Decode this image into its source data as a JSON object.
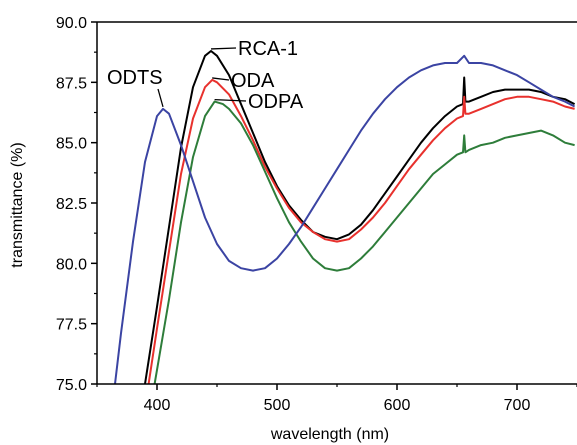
{
  "chart_data": {
    "type": "line",
    "title": "",
    "xlabel": "wavelength (nm)",
    "ylabel": "transmittance (%)",
    "xlim": [
      350,
      750
    ],
    "ylim": [
      75.0,
      90.0
    ],
    "xticks": [
      400,
      500,
      600,
      700
    ],
    "xtick_labels": [
      "400",
      "500",
      "600",
      "700"
    ],
    "yticks": [
      75.0,
      77.5,
      80.0,
      82.5,
      85.0,
      87.5,
      90.0
    ],
    "ytick_labels": [
      "75.0",
      "77.5",
      "80.0",
      "82.5",
      "85.0",
      "87.5",
      "90.0"
    ],
    "grid": false,
    "series": [
      {
        "name": "RCA-1",
        "color": "#000000",
        "points": [
          [
            390,
            75.0
          ],
          [
            400,
            78.2
          ],
          [
            410,
            81.5
          ],
          [
            420,
            84.8
          ],
          [
            430,
            87.3
          ],
          [
            440,
            88.6
          ],
          [
            445,
            88.8
          ],
          [
            450,
            88.6
          ],
          [
            460,
            87.8
          ],
          [
            470,
            86.6
          ],
          [
            480,
            85.4
          ],
          [
            490,
            84.2
          ],
          [
            500,
            83.2
          ],
          [
            510,
            82.4
          ],
          [
            520,
            81.8
          ],
          [
            530,
            81.3
          ],
          [
            540,
            81.1
          ],
          [
            550,
            81.0
          ],
          [
            560,
            81.2
          ],
          [
            570,
            81.6
          ],
          [
            580,
            82.2
          ],
          [
            590,
            82.9
          ],
          [
            600,
            83.6
          ],
          [
            610,
            84.3
          ],
          [
            620,
            85.0
          ],
          [
            630,
            85.6
          ],
          [
            640,
            86.1
          ],
          [
            650,
            86.5
          ],
          [
            655,
            86.6
          ],
          [
            656,
            87.7
          ],
          [
            657,
            86.7
          ],
          [
            660,
            86.7
          ],
          [
            670,
            86.9
          ],
          [
            680,
            87.1
          ],
          [
            690,
            87.2
          ],
          [
            700,
            87.2
          ],
          [
            710,
            87.2
          ],
          [
            720,
            87.1
          ],
          [
            730,
            86.9
          ],
          [
            740,
            86.8
          ],
          [
            748,
            86.6
          ]
        ]
      },
      {
        "name": "ODA",
        "color": "#e8312d",
        "points": [
          [
            393,
            75.0
          ],
          [
            400,
            77.3
          ],
          [
            410,
            80.5
          ],
          [
            420,
            83.7
          ],
          [
            430,
            86.0
          ],
          [
            440,
            87.3
          ],
          [
            446,
            87.6
          ],
          [
            450,
            87.5
          ],
          [
            460,
            87.0
          ],
          [
            470,
            86.1
          ],
          [
            480,
            85.1
          ],
          [
            490,
            84.0
          ],
          [
            500,
            83.1
          ],
          [
            510,
            82.3
          ],
          [
            520,
            81.7
          ],
          [
            530,
            81.3
          ],
          [
            540,
            81.0
          ],
          [
            550,
            80.9
          ],
          [
            560,
            81.0
          ],
          [
            570,
            81.4
          ],
          [
            580,
            81.9
          ],
          [
            590,
            82.5
          ],
          [
            600,
            83.2
          ],
          [
            610,
            83.9
          ],
          [
            620,
            84.5
          ],
          [
            630,
            85.1
          ],
          [
            640,
            85.6
          ],
          [
            650,
            86.0
          ],
          [
            655,
            86.1
          ],
          [
            656,
            86.9
          ],
          [
            657,
            86.2
          ],
          [
            660,
            86.2
          ],
          [
            670,
            86.4
          ],
          [
            680,
            86.6
          ],
          [
            690,
            86.8
          ],
          [
            700,
            86.9
          ],
          [
            710,
            86.9
          ],
          [
            720,
            86.8
          ],
          [
            730,
            86.7
          ],
          [
            740,
            86.5
          ],
          [
            748,
            86.4
          ]
        ]
      },
      {
        "name": "ODPA",
        "color": "#2e7d3a",
        "points": [
          [
            398,
            75.0
          ],
          [
            410,
            78.5
          ],
          [
            420,
            81.7
          ],
          [
            430,
            84.4
          ],
          [
            440,
            86.1
          ],
          [
            448,
            86.7
          ],
          [
            455,
            86.6
          ],
          [
            460,
            86.4
          ],
          [
            470,
            85.8
          ],
          [
            480,
            84.9
          ],
          [
            490,
            83.8
          ],
          [
            500,
            82.7
          ],
          [
            510,
            81.7
          ],
          [
            520,
            80.9
          ],
          [
            530,
            80.2
          ],
          [
            540,
            79.8
          ],
          [
            550,
            79.7
          ],
          [
            560,
            79.8
          ],
          [
            570,
            80.2
          ],
          [
            580,
            80.7
          ],
          [
            590,
            81.3
          ],
          [
            600,
            81.9
          ],
          [
            610,
            82.5
          ],
          [
            620,
            83.1
          ],
          [
            630,
            83.7
          ],
          [
            640,
            84.1
          ],
          [
            650,
            84.5
          ],
          [
            655,
            84.6
          ],
          [
            656,
            85.3
          ],
          [
            657,
            84.6
          ],
          [
            660,
            84.7
          ],
          [
            670,
            84.9
          ],
          [
            680,
            85.0
          ],
          [
            690,
            85.2
          ],
          [
            700,
            85.3
          ],
          [
            710,
            85.4
          ],
          [
            720,
            85.5
          ],
          [
            730,
            85.3
          ],
          [
            740,
            85.0
          ],
          [
            748,
            84.9
          ]
        ]
      },
      {
        "name": "ODTS",
        "color": "#3b44a3",
        "points": [
          [
            365,
            75.0
          ],
          [
            370,
            77.1
          ],
          [
            380,
            80.9
          ],
          [
            390,
            84.2
          ],
          [
            400,
            86.1
          ],
          [
            405,
            86.4
          ],
          [
            410,
            86.2
          ],
          [
            420,
            84.9
          ],
          [
            430,
            83.4
          ],
          [
            440,
            81.9
          ],
          [
            450,
            80.8
          ],
          [
            460,
            80.1
          ],
          [
            470,
            79.8
          ],
          [
            480,
            79.7
          ],
          [
            490,
            79.8
          ],
          [
            500,
            80.2
          ],
          [
            510,
            80.8
          ],
          [
            520,
            81.5
          ],
          [
            530,
            82.3
          ],
          [
            540,
            83.1
          ],
          [
            550,
            83.9
          ],
          [
            560,
            84.7
          ],
          [
            570,
            85.5
          ],
          [
            580,
            86.2
          ],
          [
            590,
            86.8
          ],
          [
            600,
            87.3
          ],
          [
            610,
            87.7
          ],
          [
            620,
            88.0
          ],
          [
            630,
            88.2
          ],
          [
            640,
            88.3
          ],
          [
            650,
            88.3
          ],
          [
            656,
            88.6
          ],
          [
            660,
            88.3
          ],
          [
            670,
            88.3
          ],
          [
            680,
            88.2
          ],
          [
            690,
            88.0
          ],
          [
            700,
            87.8
          ],
          [
            710,
            87.5
          ],
          [
            720,
            87.2
          ],
          [
            730,
            86.9
          ],
          [
            740,
            86.7
          ],
          [
            748,
            86.5
          ]
        ]
      }
    ],
    "annotations": [
      {
        "text": "RCA-1",
        "series": "RCA-1"
      },
      {
        "text": "ODA",
        "series": "ODA"
      },
      {
        "text": "ODPA",
        "series": "ODPA"
      },
      {
        "text": "ODTS",
        "series": "ODTS"
      }
    ]
  }
}
